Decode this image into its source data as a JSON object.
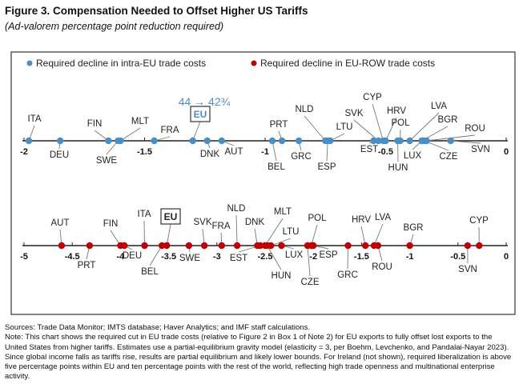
{
  "title": "Figure 3. Compensation Needed to Offset Higher US Tariffs",
  "subtitle": "(Ad-valorem percentage point reduction required)",
  "sources": "Sources: Trade Data Monitor; IMTS database; Haver Analytics; and IMF staff calculations.",
  "note": "Note: This chart shows the required cut in EU trade costs (relative to Figure 2 in Box 1 of Note 2) for EU exports to fully offset lost exports to the United States from higher tariffs. Estimates use a partial-equilibrium gravity model (elasticity = 3, per Boehm, Levchenko, and Pandalai-Nayar 2023). Since global income falls as tariffs rise, results are partial equilibrium and likely lower bounds. For Ireland (not shown), required liberalization is above five percentage points within EU and ten percentage points with the rest of the world, reflecting high trade openness and multinational enterprise activity.",
  "colors": {
    "intra_eu": "#4a8fc4",
    "eu_row": "#c00000",
    "annotation": "#4a8fc4"
  },
  "chart_data": [
    {
      "type": "scatter",
      "legend": "Required decline in intra-EU trade costs",
      "legend_position": "top",
      "xlim": [
        -2,
        0
      ],
      "tick_labels": [
        "-2",
        "-1.5",
        "-1",
        "-0.5",
        "0"
      ],
      "annotation": "44 → 42¾",
      "points": [
        {
          "label": "ITA",
          "x": -1.98
        },
        {
          "label": "DEU",
          "x": -1.85
        },
        {
          "label": "FIN",
          "x": -1.65
        },
        {
          "label": "SWE",
          "x": -1.61
        },
        {
          "label": "MLT",
          "x": -1.6
        },
        {
          "label": "FRA",
          "x": -1.46
        },
        {
          "label": "EU",
          "x": -1.3
        },
        {
          "label": "DNK",
          "x": -1.24
        },
        {
          "label": "AUT",
          "x": -1.18
        },
        {
          "label": "BEL",
          "x": -0.97
        },
        {
          "label": "PRT",
          "x": -0.93
        },
        {
          "label": "GRC",
          "x": -0.86
        },
        {
          "label": "NLD",
          "x": -0.75
        },
        {
          "label": "ESP",
          "x": -0.74
        },
        {
          "label": "LTU",
          "x": -0.73
        },
        {
          "label": "EST",
          "x": -0.55
        },
        {
          "label": "SVK",
          "x": -0.53
        },
        {
          "label": "CYP",
          "x": -0.51
        },
        {
          "label": "HRV",
          "x": -0.5
        },
        {
          "label": "HUN",
          "x": -0.45
        },
        {
          "label": "POL",
          "x": -0.44
        },
        {
          "label": "LVA",
          "x": -0.4
        },
        {
          "label": "LUX",
          "x": -0.35
        },
        {
          "label": "BGR",
          "x": -0.35
        },
        {
          "label": "CZE",
          "x": -0.34
        },
        {
          "label": "ROU",
          "x": -0.33
        },
        {
          "label": "SVN",
          "x": -0.23
        }
      ]
    },
    {
      "type": "scatter",
      "legend": "Required decline in EU-ROW trade costs",
      "legend_position": "top",
      "xlim": [
        -5,
        0
      ],
      "tick_labels": [
        "-5",
        "-4.5",
        "-4",
        "-3.5",
        "-3",
        "-2.5",
        "-2",
        "-1.5",
        "-1",
        "-0.5",
        "0"
      ],
      "points": [
        {
          "label": "AUT",
          "x": -4.61
        },
        {
          "label": "PRT",
          "x": -4.32
        },
        {
          "label": "FIN",
          "x": -4.0
        },
        {
          "label": "DEU",
          "x": -3.96
        },
        {
          "label": "ITA",
          "x": -3.75
        },
        {
          "label": "BEL",
          "x": -3.57
        },
        {
          "label": "EU",
          "x": -3.52
        },
        {
          "label": "SWE",
          "x": -3.29
        },
        {
          "label": "SVK",
          "x": -3.13
        },
        {
          "label": "FRA",
          "x": -2.95
        },
        {
          "label": "NLD",
          "x": -2.79
        },
        {
          "label": "DNK",
          "x": -2.58
        },
        {
          "label": "EST",
          "x": -2.55
        },
        {
          "label": "MLT",
          "x": -2.5
        },
        {
          "label": "HUN",
          "x": -2.48
        },
        {
          "label": "LTU",
          "x": -2.44
        },
        {
          "label": "LUX",
          "x": -2.33
        },
        {
          "label": "CZE",
          "x": -2.06
        },
        {
          "label": "POL",
          "x": -2.02
        },
        {
          "label": "ESP",
          "x": -2.0
        },
        {
          "label": "GRC",
          "x": -1.64
        },
        {
          "label": "HRV",
          "x": -1.46
        },
        {
          "label": "LVA",
          "x": -1.37
        },
        {
          "label": "ROU",
          "x": -1.33
        },
        {
          "label": "BGR",
          "x": -1.0
        },
        {
          "label": "SVN",
          "x": -0.4
        },
        {
          "label": "CYP",
          "x": -0.28
        }
      ]
    }
  ]
}
